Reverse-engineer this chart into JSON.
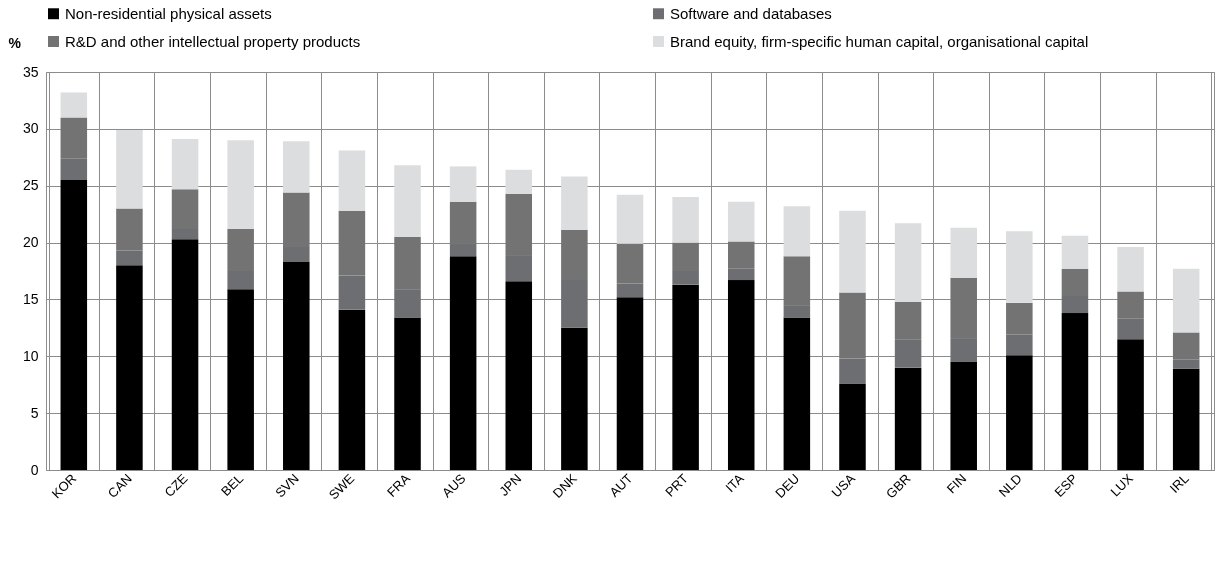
{
  "chart_data": {
    "type": "bar",
    "stacked": true,
    "ylabel": "%",
    "categories": [
      "KOR",
      "CAN",
      "CZE",
      "BEL",
      "SVN",
      "SWE",
      "FRA",
      "AUS",
      "JPN",
      "DNK",
      "AUT",
      "PRT",
      "ITA",
      "DEU",
      "USA",
      "GBR",
      "FIN",
      "NLD",
      "ESP",
      "LUX",
      "IRL"
    ],
    "series": [
      {
        "name": "Non-residential physical assets",
        "color": "#000000",
        "values": [
          25.5,
          18.0,
          20.3,
          15.9,
          18.3,
          14.1,
          13.4,
          18.8,
          16.6,
          12.5,
          15.2,
          16.3,
          16.7,
          13.4,
          7.6,
          9.0,
          9.5,
          10.1,
          13.8,
          11.5,
          8.9
        ]
      },
      {
        "name": "Software and databases",
        "color": "#6d6e71",
        "values": [
          1.9,
          1.3,
          0.9,
          1.6,
          1.3,
          3.0,
          2.5,
          1.1,
          2.3,
          4.2,
          1.2,
          1.2,
          1.0,
          1.1,
          2.2,
          2.5,
          2.1,
          1.8,
          1.5,
          1.8,
          0.8
        ]
      },
      {
        "name": "R&D and other intellectual property products",
        "color": "#737373",
        "values": [
          3.6,
          3.7,
          3.5,
          3.7,
          4.8,
          5.7,
          4.6,
          3.7,
          5.4,
          4.4,
          3.5,
          2.5,
          2.4,
          4.3,
          5.8,
          3.3,
          5.3,
          2.8,
          2.4,
          2.4,
          2.4
        ]
      },
      {
        "name": "Brand equity, firm-specific human capital, organisational capital",
        "color": "#dcdddf",
        "values": [
          2.2,
          6.9,
          4.4,
          7.8,
          4.5,
          5.3,
          6.3,
          3.1,
          2.1,
          4.7,
          4.3,
          4.0,
          3.5,
          4.4,
          7.2,
          6.9,
          4.4,
          6.3,
          2.9,
          3.9,
          5.6
        ]
      }
    ],
    "ylim": [
      0,
      35
    ],
    "yticks": [
      0,
      5,
      10,
      15,
      20,
      25,
      30,
      35
    ],
    "grid": true,
    "legend": "top"
  }
}
